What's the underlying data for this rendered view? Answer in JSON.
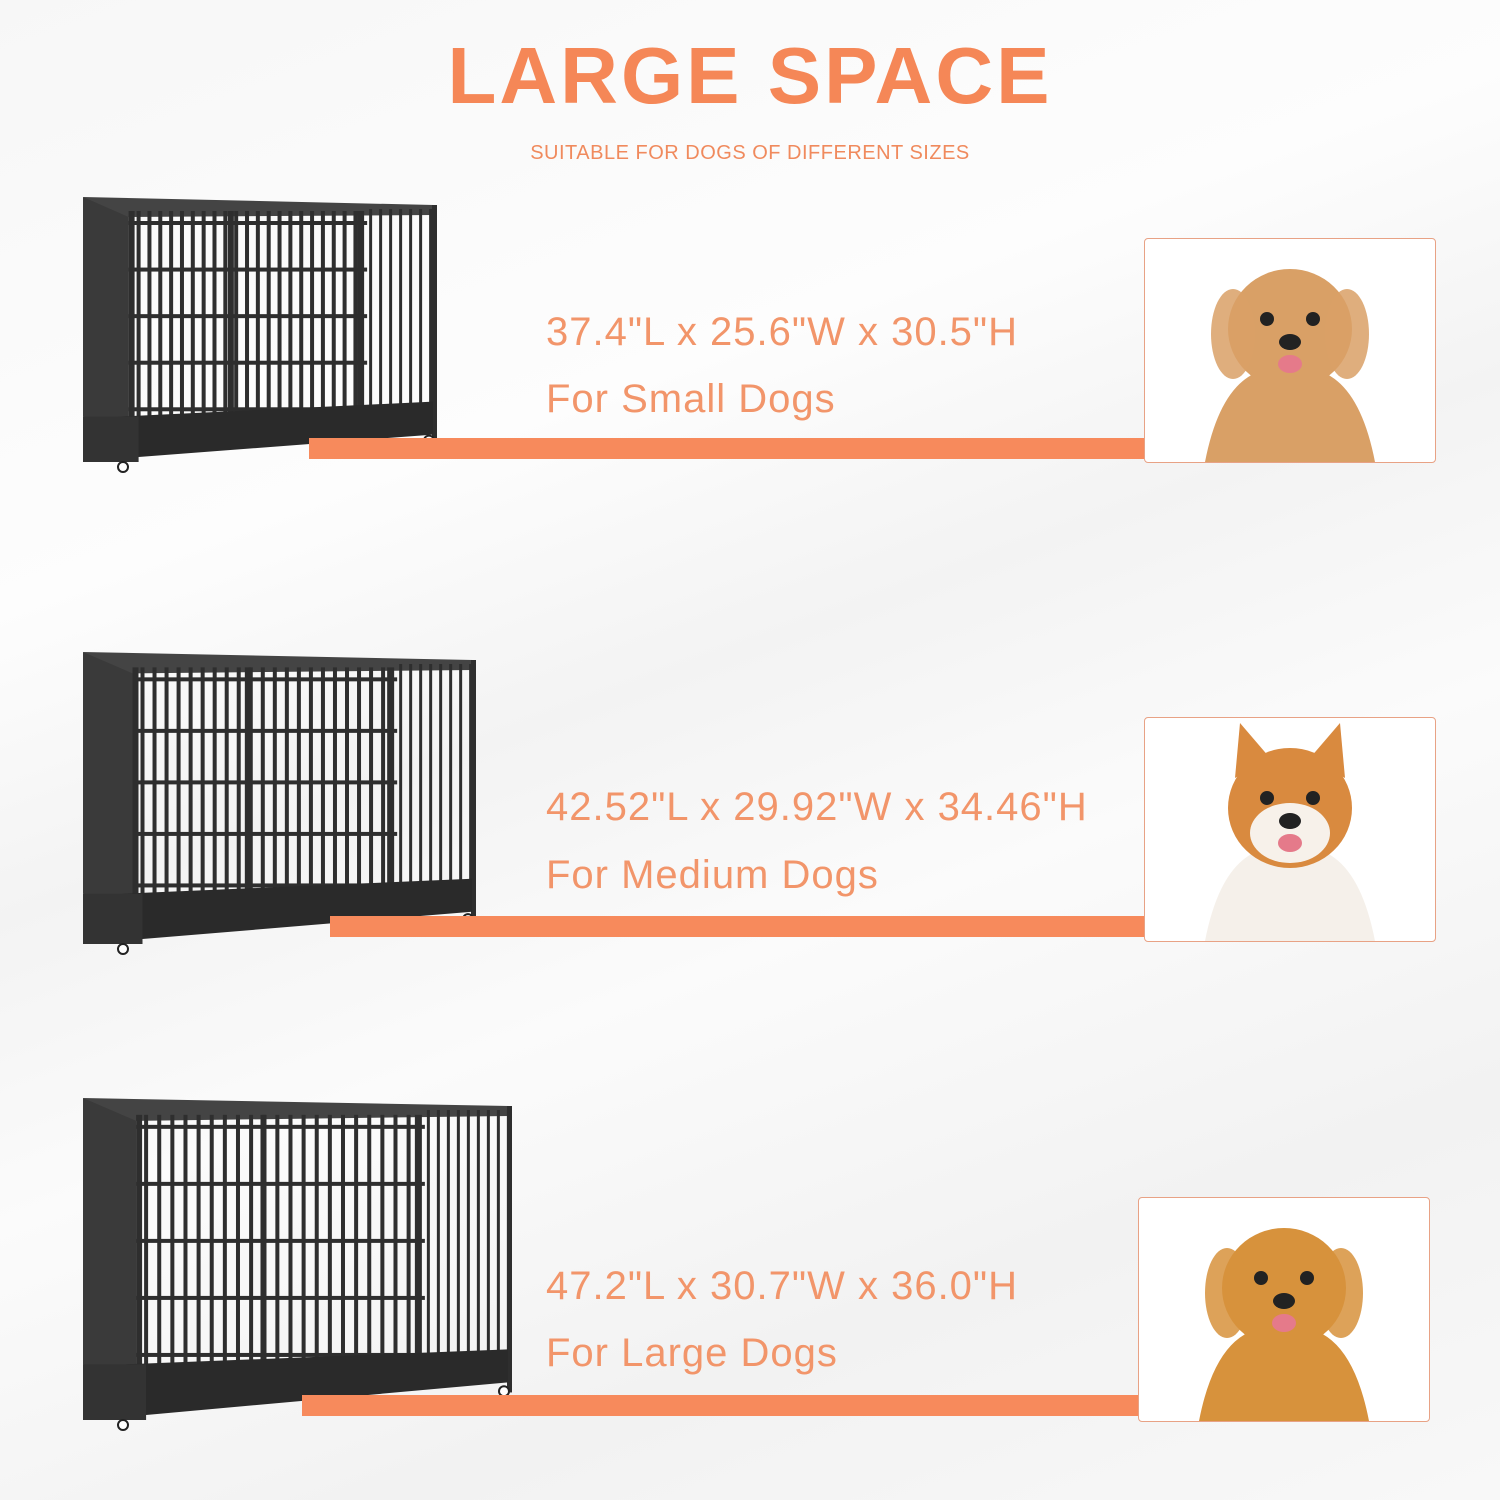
{
  "header": {
    "title": "LARGE SPACE",
    "subtitle": "SUITABLE FOR DOGS OF DIFFERENT SIZES"
  },
  "accent_color": "#f58757",
  "sizes": [
    {
      "dimensions": "37.4\"L x 25.6\"W x 30.5\"H",
      "label": "For Small Dogs",
      "photo_icon": "small-dog-photo",
      "dog_color": "#d9a066"
    },
    {
      "dimensions": "42.52\"L x 29.92\"W x 34.46\"H",
      "label": "For Medium Dogs",
      "photo_icon": "shiba-dog-photo",
      "dog_color": "#d98a3f"
    },
    {
      "dimensions": "47.2\"L x 30.7\"W x 36.0\"H",
      "label": "For Large Dogs",
      "photo_icon": "golden-retriever-photo",
      "dog_color": "#d7923c"
    }
  ]
}
